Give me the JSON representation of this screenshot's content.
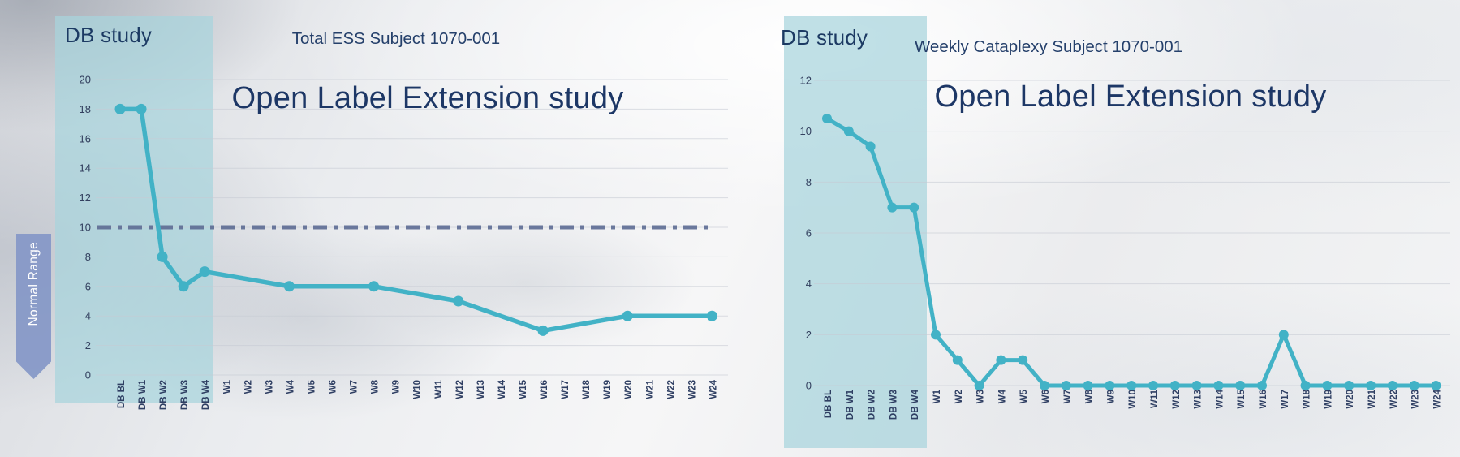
{
  "overlay": {
    "normal_range_label": "Normal Range"
  },
  "charts": [
    {
      "db_study_label": "DB study",
      "subtitle": "Total ESS Subject 1070-001",
      "title": "Open Label Extension study",
      "chart_data": {
        "type": "line",
        "title": "Open Label Extension study",
        "subtitle": "Total ESS Subject 1070-001",
        "series_color": "#42b2c6",
        "categories": [
          "DB BL",
          "DB W1",
          "DB W2",
          "DB W3",
          "DB W4",
          "W1",
          "W2",
          "W3",
          "W4",
          "W5",
          "W6",
          "W7",
          "W8",
          "W9",
          "W10",
          "W11",
          "W12",
          "W13",
          "W14",
          "W15",
          "W16",
          "W17",
          "W18",
          "W19",
          "W20",
          "W21",
          "W22",
          "W23",
          "W24"
        ],
        "points": [
          {
            "category": "DB BL",
            "value": 18
          },
          {
            "category": "DB W1",
            "value": 18
          },
          {
            "category": "DB W2",
            "value": 8
          },
          {
            "category": "DB W3",
            "value": 6
          },
          {
            "category": "DB W4",
            "value": 7
          },
          {
            "category": "W4",
            "value": 6
          },
          {
            "category": "W8",
            "value": 6
          },
          {
            "category": "W12",
            "value": 5
          },
          {
            "category": "W16",
            "value": 3
          },
          {
            "category": "W20",
            "value": 4
          },
          {
            "category": "W24",
            "value": 4
          }
        ],
        "ylim": [
          0,
          20
        ],
        "ytick_step": 2,
        "yticks": [
          0,
          2,
          4,
          6,
          8,
          10,
          12,
          14,
          16,
          18,
          20
        ],
        "grid": true,
        "legend": "none",
        "reference_line": {
          "value": 10,
          "label": "Normal Range",
          "style": "dash-dot",
          "color": "#5d6c94"
        },
        "shaded_region": {
          "label": "DB study",
          "from_category": "DB BL",
          "to_category": "DB W4",
          "color": "rgba(168,212,220,0.72)"
        }
      }
    },
    {
      "db_study_label": "DB study",
      "subtitle": "Weekly Cataplexy Subject 1070-001",
      "title": "Open Label Extension study",
      "chart_data": {
        "type": "line",
        "title": "Open Label Extension study",
        "subtitle": "Weekly Cataplexy Subject 1070-001",
        "series_color": "#42b2c6",
        "categories": [
          "DB BL",
          "DB W1",
          "DB W2",
          "DB W3",
          "DB W4",
          "W1",
          "W2",
          "W3",
          "W4",
          "W5",
          "W6",
          "W7",
          "W8",
          "W9",
          "W10",
          "W11",
          "W12",
          "W13",
          "W14",
          "W15",
          "W16",
          "W17",
          "W18",
          "W19",
          "W20",
          "W21",
          "W22",
          "W23",
          "W24"
        ],
        "points": [
          {
            "category": "DB BL",
            "value": 10.5
          },
          {
            "category": "DB W1",
            "value": 10
          },
          {
            "category": "DB W2",
            "value": 9.4
          },
          {
            "category": "DB W3",
            "value": 7
          },
          {
            "category": "DB W4",
            "value": 7
          },
          {
            "category": "W1",
            "value": 2
          },
          {
            "category": "W2",
            "value": 1
          },
          {
            "category": "W3",
            "value": 0
          },
          {
            "category": "W4",
            "value": 1
          },
          {
            "category": "W5",
            "value": 1
          },
          {
            "category": "W6",
            "value": 0
          },
          {
            "category": "W7",
            "value": 0
          },
          {
            "category": "W8",
            "value": 0
          },
          {
            "category": "W9",
            "value": 0
          },
          {
            "category": "W10",
            "value": 0
          },
          {
            "category": "W11",
            "value": 0
          },
          {
            "category": "W12",
            "value": 0
          },
          {
            "category": "W13",
            "value": 0
          },
          {
            "category": "W14",
            "value": 0
          },
          {
            "category": "W15",
            "value": 0
          },
          {
            "category": "W16",
            "value": 0
          },
          {
            "category": "W17",
            "value": 2
          },
          {
            "category": "W18",
            "value": 0
          },
          {
            "category": "W19",
            "value": 0
          },
          {
            "category": "W20",
            "value": 0
          },
          {
            "category": "W21",
            "value": 0
          },
          {
            "category": "W22",
            "value": 0
          },
          {
            "category": "W23",
            "value": 0
          },
          {
            "category": "W24",
            "value": 0
          }
        ],
        "ylim": [
          0,
          12
        ],
        "ytick_step": 2,
        "yticks": [
          0,
          2,
          4,
          6,
          8,
          10,
          12
        ],
        "grid": true,
        "legend": "none",
        "shaded_region": {
          "label": "DB study",
          "from_category": "DB BL",
          "to_category": "DB W4",
          "color": "rgba(168,212,220,0.72)"
        }
      }
    }
  ]
}
